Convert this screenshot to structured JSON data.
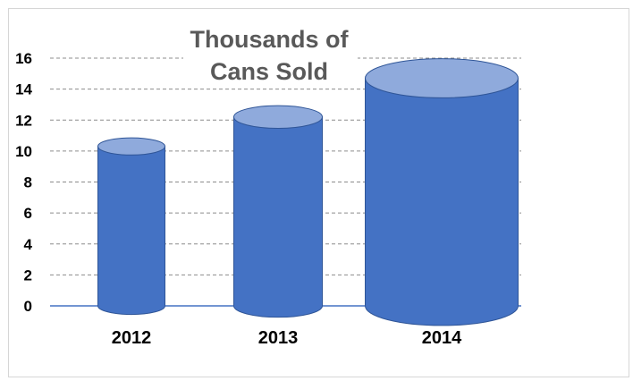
{
  "chart_data": {
    "type": "bar",
    "title_lines": [
      "Thousands of",
      "Cans Sold"
    ],
    "categories": [
      "2012",
      "2013",
      "2014"
    ],
    "values": [
      10.3,
      12.2,
      14.7
    ],
    "ylim": [
      0,
      16
    ],
    "yticks": [
      "0",
      "2",
      "4",
      "6",
      "8",
      "10",
      "12",
      "14",
      "16"
    ],
    "grid": true,
    "legend": "none"
  },
  "colors": {
    "cylinder_body": "#4472c4",
    "cylinder_top": "#8faadc",
    "cylinder_edge": "#2f5597",
    "grid": "#8c8c8c",
    "axis": "#4472c4",
    "title": "#595959"
  }
}
